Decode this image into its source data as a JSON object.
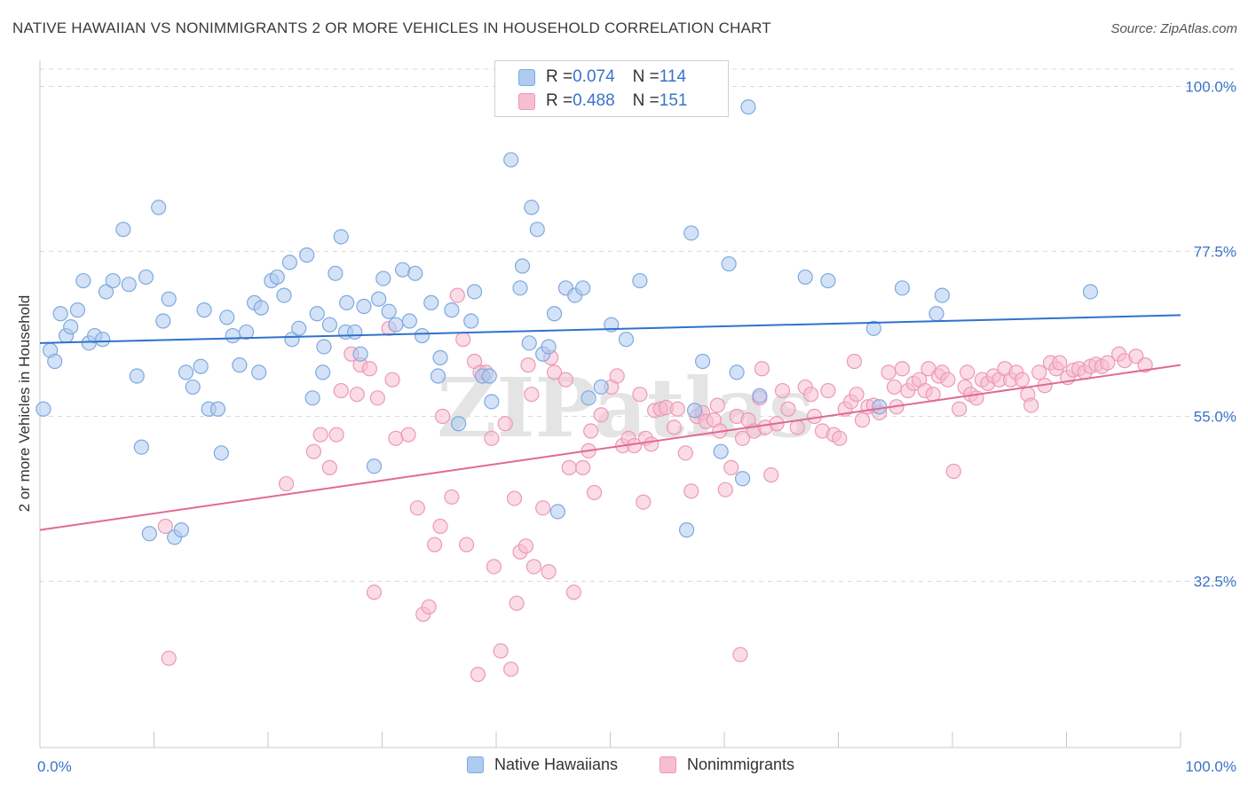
{
  "header": {
    "title": "NATIVE HAWAIIAN VS NONIMMIGRANTS 2 OR MORE VEHICLES IN HOUSEHOLD CORRELATION CHART",
    "source": "Source: ZipAtlas.com"
  },
  "legend": {
    "series1": {
      "r_label": "R = ",
      "r_value": "0.074",
      "n_label": "N = ",
      "n_value": "114"
    },
    "series2": {
      "r_label": "R = ",
      "r_value": "0.488",
      "n_label": "N = ",
      "n_value": "151"
    }
  },
  "bottom_legend": {
    "series1": "Native Hawaiians",
    "series2": "Nonimmigrants"
  },
  "colors": {
    "blue_fill": "#aecbf0",
    "blue_stroke": "#7ea9e0",
    "blue_line": "#2f72cc",
    "pink_fill": "#f7bdd0",
    "pink_stroke": "#ec99b6",
    "pink_line": "#e0699a",
    "tick_text": "#3a73c9",
    "grid": "#d9d9d9"
  },
  "chart_data": {
    "type": "scatter",
    "title": "NATIVE HAWAIIAN VS NONIMMIGRANTS 2 OR MORE VEHICLES IN HOUSEHOLD CORRELATION CHART",
    "xlabel": "",
    "ylabel": "2 or more Vehicles in Household",
    "xlim": [
      0,
      100
    ],
    "ylim": [
      12,
      104
    ],
    "x_tick_labels": [
      "0.0%",
      "100.0%"
    ],
    "y_ticks": [
      100.0,
      77.5,
      55.0,
      32.5
    ],
    "y_tick_labels": [
      "100.0%",
      "77.5%",
      "55.0%",
      "32.5%"
    ],
    "watermark": "ZIPatlas",
    "series": [
      {
        "name": "Native Hawaiians",
        "trend": {
          "y_at_x0": 65.0,
          "y_at_x100": 68.8
        },
        "points": [
          [
            0.3,
            56
          ],
          [
            0.9,
            64
          ],
          [
            1.3,
            62.5
          ],
          [
            1.8,
            69
          ],
          [
            2.3,
            66
          ],
          [
            2.7,
            67.2
          ],
          [
            3.3,
            69.5
          ],
          [
            3.8,
            73.5
          ],
          [
            4.3,
            65
          ],
          [
            4.8,
            66
          ],
          [
            5.5,
            65.5
          ],
          [
            5.8,
            72
          ],
          [
            6.4,
            73.5
          ],
          [
            7.3,
            80.5
          ],
          [
            7.8,
            73
          ],
          [
            8.5,
            60.5
          ],
          [
            8.9,
            50.8
          ],
          [
            9.3,
            74
          ],
          [
            9.6,
            39
          ],
          [
            10.4,
            83.5
          ],
          [
            10.8,
            68
          ],
          [
            11.3,
            71
          ],
          [
            11.8,
            38.5
          ],
          [
            12.4,
            39.5
          ],
          [
            12.8,
            61
          ],
          [
            13.4,
            59
          ],
          [
            14.1,
            61.8
          ],
          [
            14.4,
            69.5
          ],
          [
            14.8,
            56
          ],
          [
            15.6,
            56
          ],
          [
            15.9,
            50
          ],
          [
            16.4,
            68.5
          ],
          [
            16.9,
            66
          ],
          [
            17.5,
            62
          ],
          [
            18.1,
            66.5
          ],
          [
            18.8,
            70.5
          ],
          [
            19.2,
            61
          ],
          [
            19.4,
            69.8
          ],
          [
            20.3,
            73.5
          ],
          [
            20.8,
            74
          ],
          [
            21.4,
            71.5
          ],
          [
            21.9,
            76
          ],
          [
            22.1,
            65.5
          ],
          [
            22.7,
            67
          ],
          [
            23.4,
            77
          ],
          [
            23.9,
            57.5
          ],
          [
            24.3,
            69
          ],
          [
            24.8,
            61
          ],
          [
            24.9,
            64.5
          ],
          [
            25.4,
            67.5
          ],
          [
            25.9,
            74.5
          ],
          [
            26.4,
            79.5
          ],
          [
            26.8,
            66.5
          ],
          [
            26.9,
            70.5
          ],
          [
            27.6,
            66.5
          ],
          [
            28.1,
            63.5
          ],
          [
            28.4,
            70
          ],
          [
            29.3,
            48.2
          ],
          [
            29.7,
            71
          ],
          [
            30.1,
            73.8
          ],
          [
            30.6,
            69.3
          ],
          [
            31.2,
            67.5
          ],
          [
            31.8,
            75
          ],
          [
            32.4,
            68
          ],
          [
            32.9,
            74.5
          ],
          [
            33.5,
            66
          ],
          [
            34.3,
            70.5
          ],
          [
            34.9,
            60.5
          ],
          [
            35.1,
            63
          ],
          [
            36.1,
            69.5
          ],
          [
            36.7,
            54
          ],
          [
            37.8,
            68
          ],
          [
            38.1,
            72
          ],
          [
            38.8,
            60.5
          ],
          [
            39.4,
            60.5
          ],
          [
            39.6,
            57
          ],
          [
            41.3,
            90
          ],
          [
            42.1,
            72.5
          ],
          [
            42.3,
            75.5
          ],
          [
            42.9,
            65
          ],
          [
            43.1,
            83.5
          ],
          [
            43.6,
            80.5
          ],
          [
            44.1,
            63.5
          ],
          [
            44.6,
            64.5
          ],
          [
            45.1,
            69
          ],
          [
            45.4,
            42
          ],
          [
            46.1,
            72.5
          ],
          [
            46.9,
            71.5
          ],
          [
            47.6,
            72.5
          ],
          [
            48.1,
            57.5
          ],
          [
            49.2,
            59
          ],
          [
            50.1,
            67.5
          ],
          [
            51.4,
            65.5
          ],
          [
            52.6,
            73.5
          ],
          [
            56.7,
            39.5
          ],
          [
            57.1,
            80
          ],
          [
            57.4,
            55.8
          ],
          [
            58.1,
            62.5
          ],
          [
            59.7,
            50.2
          ],
          [
            60.4,
            75.8
          ],
          [
            61.1,
            61
          ],
          [
            61.6,
            46.5
          ],
          [
            62.1,
            97.2
          ],
          [
            63.1,
            57.8
          ],
          [
            67.1,
            74
          ],
          [
            69.1,
            73.5
          ],
          [
            73.1,
            67
          ],
          [
            73.6,
            56.3
          ],
          [
            75.6,
            72.5
          ],
          [
            78.6,
            69
          ],
          [
            79.1,
            71.5
          ],
          [
            92.1,
            72
          ]
        ]
      },
      {
        "name": "Nonimmigrants",
        "trend": {
          "y_at_x0": 39.5,
          "y_at_x100": 62.0
        },
        "points": [
          [
            11,
            40
          ],
          [
            11.3,
            22
          ],
          [
            21.6,
            45.8
          ],
          [
            24,
            50.2
          ],
          [
            24.6,
            52.5
          ],
          [
            25.4,
            48
          ],
          [
            26,
            52.5
          ],
          [
            26.4,
            58.5
          ],
          [
            27.3,
            63.5
          ],
          [
            27.8,
            58
          ],
          [
            28.1,
            62
          ],
          [
            28.9,
            61.5
          ],
          [
            29.3,
            31
          ],
          [
            29.6,
            57.5
          ],
          [
            30.6,
            67
          ],
          [
            30.9,
            60
          ],
          [
            31.2,
            52
          ],
          [
            32.3,
            52.5
          ],
          [
            33.1,
            42.5
          ],
          [
            33.6,
            28
          ],
          [
            34.1,
            29
          ],
          [
            34.6,
            37.5
          ],
          [
            35.1,
            40
          ],
          [
            35.3,
            55
          ],
          [
            36.1,
            44
          ],
          [
            36.6,
            71.5
          ],
          [
            37.1,
            65.5
          ],
          [
            37.4,
            37.5
          ],
          [
            38.1,
            62.5
          ],
          [
            38.4,
            19.8
          ],
          [
            38.6,
            61
          ],
          [
            39.1,
            61
          ],
          [
            39.6,
            52
          ],
          [
            39.8,
            34.5
          ],
          [
            40.4,
            23
          ],
          [
            40.8,
            54
          ],
          [
            41.3,
            20.5
          ],
          [
            41.6,
            43.8
          ],
          [
            41.8,
            29.5
          ],
          [
            42.1,
            36.5
          ],
          [
            42.6,
            37.3
          ],
          [
            42.8,
            62
          ],
          [
            43.1,
            58
          ],
          [
            43.3,
            34.5
          ],
          [
            44.1,
            42.5
          ],
          [
            44.6,
            33.8
          ],
          [
            44.8,
            63
          ],
          [
            45.1,
            61
          ],
          [
            46.1,
            60
          ],
          [
            46.4,
            48
          ],
          [
            46.8,
            31
          ],
          [
            47.6,
            48
          ],
          [
            48.1,
            50.3
          ],
          [
            48.3,
            53
          ],
          [
            48.6,
            44.6
          ],
          [
            49.2,
            55.2
          ],
          [
            50.1,
            59
          ],
          [
            50.6,
            60.5
          ],
          [
            51.1,
            51
          ],
          [
            51.6,
            52
          ],
          [
            52.1,
            51
          ],
          [
            52.6,
            58
          ],
          [
            52.9,
            43.3
          ],
          [
            53.1,
            52
          ],
          [
            53.6,
            51.2
          ],
          [
            53.9,
            55.8
          ],
          [
            54.4,
            56
          ],
          [
            54.9,
            56.2
          ],
          [
            55.6,
            53.5
          ],
          [
            55.9,
            56
          ],
          [
            56.6,
            50
          ],
          [
            57.1,
            44.8
          ],
          [
            57.6,
            55
          ],
          [
            58.1,
            55.5
          ],
          [
            58.4,
            54.3
          ],
          [
            59.1,
            54.5
          ],
          [
            59.4,
            56.5
          ],
          [
            59.6,
            53
          ],
          [
            60.1,
            45
          ],
          [
            60.6,
            48
          ],
          [
            61.1,
            55
          ],
          [
            61.4,
            22.5
          ],
          [
            61.6,
            52
          ],
          [
            62.1,
            54.5
          ],
          [
            62.6,
            53
          ],
          [
            63.1,
            57.5
          ],
          [
            63.3,
            61.5
          ],
          [
            63.6,
            53.5
          ],
          [
            64.1,
            47
          ],
          [
            64.6,
            54
          ],
          [
            65.1,
            58.5
          ],
          [
            65.6,
            56
          ],
          [
            66.4,
            53.5
          ],
          [
            67.1,
            59
          ],
          [
            67.6,
            58
          ],
          [
            67.9,
            55
          ],
          [
            68.6,
            53
          ],
          [
            69.1,
            58.5
          ],
          [
            69.6,
            52.5
          ],
          [
            70.1,
            52
          ],
          [
            70.6,
            56
          ],
          [
            71.1,
            57
          ],
          [
            71.4,
            62.5
          ],
          [
            71.6,
            58
          ],
          [
            72.1,
            54.5
          ],
          [
            72.6,
            56.3
          ],
          [
            73.1,
            56.5
          ],
          [
            73.6,
            55.5
          ],
          [
            74.4,
            61
          ],
          [
            74.9,
            59
          ],
          [
            75.1,
            56.3
          ],
          [
            75.6,
            61.5
          ],
          [
            76.1,
            58.5
          ],
          [
            76.6,
            59.5
          ],
          [
            77.1,
            60
          ],
          [
            77.6,
            58.5
          ],
          [
            77.9,
            61.5
          ],
          [
            78.3,
            58
          ],
          [
            78.8,
            60.5
          ],
          [
            79.1,
            61
          ],
          [
            79.6,
            60
          ],
          [
            80.1,
            47.5
          ],
          [
            80.6,
            56
          ],
          [
            81.1,
            59
          ],
          [
            81.3,
            61
          ],
          [
            81.6,
            58
          ],
          [
            82.1,
            57.5
          ],
          [
            82.6,
            60
          ],
          [
            83.1,
            59.5
          ],
          [
            83.6,
            60.5
          ],
          [
            84.1,
            60
          ],
          [
            84.6,
            61.5
          ],
          [
            85.1,
            60
          ],
          [
            85.6,
            61
          ],
          [
            86.1,
            60
          ],
          [
            86.6,
            58
          ],
          [
            86.9,
            56.5
          ],
          [
            87.6,
            61
          ],
          [
            88.1,
            59.2
          ],
          [
            88.6,
            62.3
          ],
          [
            89.1,
            61.5
          ],
          [
            89.4,
            62.3
          ],
          [
            90.1,
            60.3
          ],
          [
            90.6,
            61.3
          ],
          [
            91.1,
            61.5
          ],
          [
            91.6,
            61
          ],
          [
            92.1,
            61.8
          ],
          [
            92.6,
            62.1
          ],
          [
            93.1,
            61.8
          ],
          [
            93.6,
            62.3
          ],
          [
            94.6,
            63.5
          ],
          [
            95.1,
            62.6
          ],
          [
            96.1,
            63.2
          ],
          [
            96.9,
            62
          ]
        ]
      }
    ]
  }
}
